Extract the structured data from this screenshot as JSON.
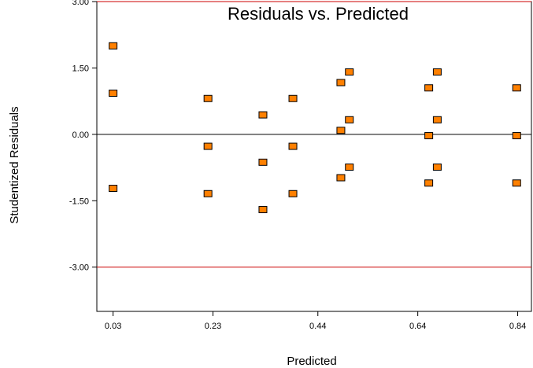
{
  "chart_data": {
    "type": "scatter",
    "title": "Residuals vs. Predicted",
    "xlabel": "Predicted",
    "ylabel": "Studentized Residuals",
    "xlim": [
      -0.0025,
      0.8675
    ],
    "ylim": [
      -4.0,
      3.0
    ],
    "x_ticks": [
      0.03,
      0.23,
      0.44,
      0.64,
      0.84
    ],
    "x_tick_labels": [
      "0.03",
      "0.23",
      "0.44",
      "0.64",
      "0.84"
    ],
    "y_ticks": [
      3.0,
      1.5,
      0.0,
      -1.5,
      -3.0
    ],
    "y_tick_labels": [
      "3.00",
      "1.50",
      "0.00",
      "-1.50",
      "-3.00"
    ],
    "reference_lines": [
      {
        "y": 3.0,
        "color": "#cc0000"
      },
      {
        "y": -3.0,
        "color": "#cc0000"
      },
      {
        "y": 0.0,
        "color": "#000000"
      }
    ],
    "marker_color": "#ff8000",
    "marker_edge_color": "#000000",
    "grid": false,
    "points": [
      {
        "x": 0.03,
        "y": 2.0
      },
      {
        "x": 0.03,
        "y": 0.93
      },
      {
        "x": 0.03,
        "y": -1.22
      },
      {
        "x": 0.22,
        "y": 0.81
      },
      {
        "x": 0.22,
        "y": -0.27
      },
      {
        "x": 0.22,
        "y": -1.34
      },
      {
        "x": 0.33,
        "y": 0.44
      },
      {
        "x": 0.33,
        "y": -0.63
      },
      {
        "x": 0.33,
        "y": -1.7
      },
      {
        "x": 0.39,
        "y": 0.81
      },
      {
        "x": 0.39,
        "y": -0.27
      },
      {
        "x": 0.39,
        "y": -1.34
      },
      {
        "x": 0.486,
        "y": 1.17
      },
      {
        "x": 0.486,
        "y": 0.09
      },
      {
        "x": 0.486,
        "y": -0.98
      },
      {
        "x": 0.503,
        "y": 1.41
      },
      {
        "x": 0.503,
        "y": 0.33
      },
      {
        "x": 0.503,
        "y": -0.74
      },
      {
        "x": 0.662,
        "y": 1.05
      },
      {
        "x": 0.662,
        "y": -0.03
      },
      {
        "x": 0.662,
        "y": -1.1
      },
      {
        "x": 0.679,
        "y": 1.41
      },
      {
        "x": 0.679,
        "y": 0.33
      },
      {
        "x": 0.679,
        "y": -0.74
      },
      {
        "x": 0.838,
        "y": 1.05
      },
      {
        "x": 0.838,
        "y": -0.03
      },
      {
        "x": 0.838,
        "y": -1.1
      }
    ]
  }
}
